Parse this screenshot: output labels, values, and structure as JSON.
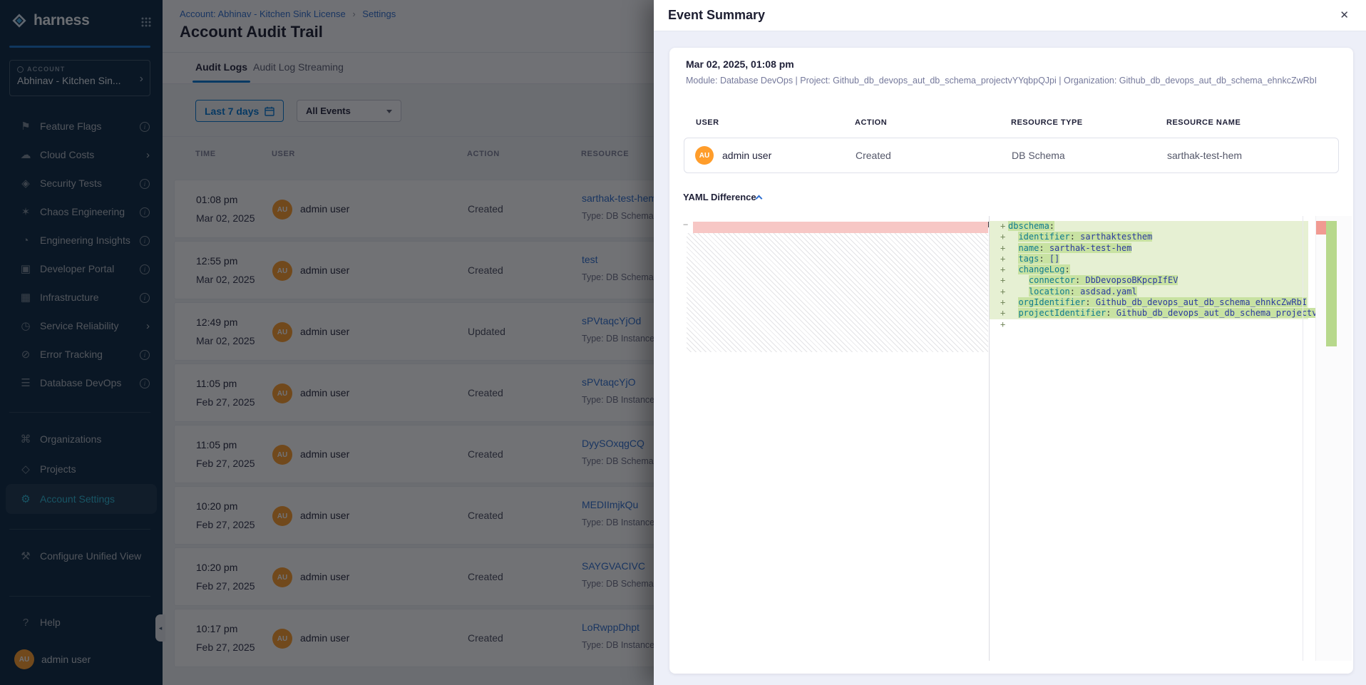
{
  "colors": {
    "accent": "#0278d5",
    "sidebar_bg": "#0a2740",
    "active_nav": "#2bb8d6",
    "avatar_orange": "#ff9d2b",
    "link_blue": "#2f6fd0",
    "diff_added_line": "#e6f0d3",
    "diff_added_token": "#c8e2a2",
    "diff_removed": "#f7c7c5",
    "yaml_key": "#0f7b8e",
    "yaml_value": "#2b3a9e"
  },
  "sidebar": {
    "logo": "harness",
    "account": {
      "label": "ACCOUNT",
      "name": "Abhinav - Kitchen Sin..."
    },
    "modules": [
      {
        "icon": "flag-icon",
        "label": "Feature Flags",
        "adorn": "info"
      },
      {
        "icon": "cloud-icon",
        "label": "Cloud Costs",
        "adorn": "chevron"
      },
      {
        "icon": "shield-icon",
        "label": "Security Tests",
        "adorn": "info"
      },
      {
        "icon": "chaos-icon",
        "label": "Chaos Engineering",
        "adorn": "info"
      },
      {
        "icon": "insights-icon",
        "label": "Engineering Insights",
        "adorn": "info"
      },
      {
        "icon": "portal-icon",
        "label": "Developer Portal",
        "adorn": "info"
      },
      {
        "icon": "infrastructure-icon",
        "label": "Infrastructure",
        "adorn": "info"
      },
      {
        "icon": "reliability-icon",
        "label": "Service Reliability",
        "adorn": "chevron"
      },
      {
        "icon": "error-icon",
        "label": "Error Tracking",
        "adorn": "info"
      },
      {
        "icon": "database-icon",
        "label": "Database DevOps",
        "adorn": "info"
      }
    ],
    "general": [
      {
        "icon": "org-icon",
        "label": "Organizations",
        "active": false
      },
      {
        "icon": "projects-icon",
        "label": "Projects",
        "active": false
      },
      {
        "icon": "gear-icon",
        "label": "Account Settings",
        "active": true
      }
    ],
    "configure": {
      "icon": "wrench-icon",
      "label": "Configure Unified View"
    },
    "help": {
      "icon": "help-icon",
      "label": "Help"
    },
    "user": {
      "initials": "AU",
      "name": "admin user"
    }
  },
  "header": {
    "breadcrumb_account": "Account: Abhinav - Kitchen Sink License",
    "breadcrumb_separator": "›",
    "breadcrumb_settings": "Settings",
    "title": "Account Audit Trail"
  },
  "tabs": {
    "audit_logs": "Audit Logs",
    "streaming": "Audit Log Streaming"
  },
  "filters": {
    "date_range": "Last 7 days",
    "events": "All Events"
  },
  "table": {
    "headers": [
      "TIME",
      "USER",
      "ACTION",
      "RESOURCE"
    ],
    "rows": [
      {
        "time": "01:08 pm",
        "date": "Mar 02, 2025",
        "initials": "AU",
        "user": "admin user",
        "action": "Created",
        "resource": "sarthak-test-hem",
        "type": "Type: DB Schema"
      },
      {
        "time": "12:55 pm",
        "date": "Mar 02, 2025",
        "initials": "AU",
        "user": "admin user",
        "action": "Created",
        "resource": "test",
        "type": "Type: DB Schema"
      },
      {
        "time": "12:49 pm",
        "date": "Mar 02, 2025",
        "initials": "AU",
        "user": "admin user",
        "action": "Updated",
        "resource": "sPVtaqcYjOd",
        "type": "Type: DB Instance"
      },
      {
        "time": "11:05 pm",
        "date": "Feb 27, 2025",
        "initials": "AU",
        "user": "admin user",
        "action": "Created",
        "resource": "sPVtaqcYjO",
        "type": "Type: DB Instance"
      },
      {
        "time": "11:05 pm",
        "date": "Feb 27, 2025",
        "initials": "AU",
        "user": "admin user",
        "action": "Created",
        "resource": "DyySOxqgCQ",
        "type": "Type: DB Schema"
      },
      {
        "time": "10:20 pm",
        "date": "Feb 27, 2025",
        "initials": "AU",
        "user": "admin user",
        "action": "Created",
        "resource": "MEDIImjkQu",
        "type": "Type: DB Instance"
      },
      {
        "time": "10:20 pm",
        "date": "Feb 27, 2025",
        "initials": "AU",
        "user": "admin user",
        "action": "Created",
        "resource": "SAYGVACIVC",
        "type": "Type: DB Schema"
      },
      {
        "time": "10:17 pm",
        "date": "Feb 27, 2025",
        "initials": "AU",
        "user": "admin user",
        "action": "Created",
        "resource": "LoRwppDhpt",
        "type": "Type: DB Instance"
      }
    ]
  },
  "modal": {
    "title": "Event Summary",
    "event": {
      "datetime": "Mar 02, 2025, 01:08 pm",
      "meta": "Module: Database DevOps | Project: Github_db_devops_aut_db_schema_projectvYYqbpQJpi | Organization: Github_db_devops_aut_db_schema_ehnkcZwRbI"
    },
    "table": {
      "headers": [
        "USER",
        "ACTION",
        "RESOURCE TYPE",
        "RESOURCE NAME"
      ],
      "row": {
        "initials": "AU",
        "user": "admin user",
        "action": "Created",
        "resource_type": "DB Schema",
        "resource_name": "sarthak-test-hem"
      }
    },
    "yaml_label": "YAML Difference",
    "diff": {
      "lines": [
        {
          "indent": 0,
          "key": "dbschema",
          "value": ""
        },
        {
          "indent": 2,
          "key": "identifier",
          "value": "sarthaktesthem"
        },
        {
          "indent": 2,
          "key": "name",
          "value": "sarthak-test-hem"
        },
        {
          "indent": 2,
          "key": "tags",
          "value": "[]"
        },
        {
          "indent": 2,
          "key": "changeLog",
          "value": ""
        },
        {
          "indent": 4,
          "key": "connector",
          "value": "DbDevopsoBKpcpIfEV"
        },
        {
          "indent": 4,
          "key": "location",
          "value": "asdsad.yaml"
        },
        {
          "indent": 2,
          "key": "orgIdentifier",
          "value": "Github_db_devops_aut_db_schema_ehnkcZwRbI"
        },
        {
          "indent": 2,
          "key": "projectIdentifier",
          "value": "Github_db_devops_aut_db_schema_projectv"
        },
        {
          "trailing": true
        }
      ]
    }
  }
}
